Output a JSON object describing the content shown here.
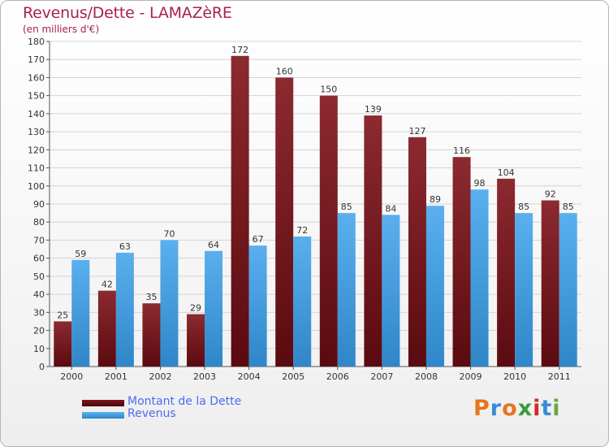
{
  "header": {
    "title": "Revenus/Dette - LAMAZèRE",
    "subtitle": "(en milliers d'€)"
  },
  "chart_data": {
    "type": "bar",
    "categories": [
      "2000",
      "2001",
      "2002",
      "2003",
      "2004",
      "2005",
      "2006",
      "2007",
      "2008",
      "2009",
      "2010",
      "2011"
    ],
    "series": [
      {
        "name": "Montant de la Dette",
        "values": [
          25,
          42,
          35,
          29,
          172,
          160,
          150,
          139,
          127,
          116,
          104,
          92
        ],
        "color": "#7a1c22"
      },
      {
        "name": "Revenus",
        "values": [
          59,
          63,
          70,
          64,
          67,
          72,
          85,
          84,
          89,
          98,
          85,
          85
        ],
        "color": "#4aa3e4"
      }
    ],
    "title": "Revenus/Dette - LAMAZèRE",
    "ylabel": "(en milliers d'€)",
    "ylim": [
      0,
      180
    ],
    "yticks": [
      0,
      10,
      20,
      30,
      40,
      50,
      60,
      70,
      80,
      90,
      100,
      110,
      120,
      130,
      140,
      150,
      160,
      170,
      180
    ],
    "grid": true,
    "legend": "bottom-left"
  },
  "legend": {
    "items": [
      {
        "label": "Montant de la Dette",
        "color": "#6a0e14"
      },
      {
        "label": "Revenus",
        "color": "#4aa3e4"
      }
    ]
  },
  "logo": {
    "letters": [
      "P",
      "r",
      "o",
      "x",
      "i",
      "t",
      "i"
    ],
    "colors": [
      "#e8731c",
      "#3a8ad8",
      "#e8731c",
      "#3a9a3a",
      "#d42a2a",
      "#3a8ad8",
      "#6aa83a"
    ]
  }
}
